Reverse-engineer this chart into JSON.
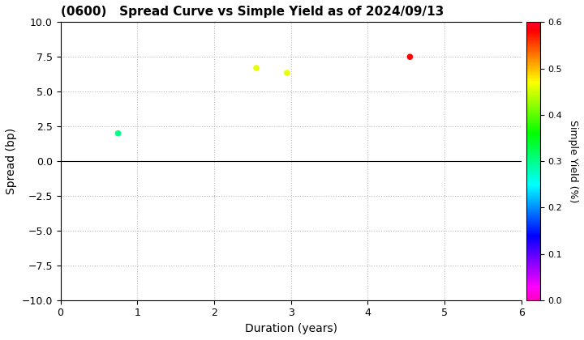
{
  "title": "(0600)   Spread Curve vs Simple Yield as of 2024/09/13",
  "xlabel": "Duration (years)",
  "ylabel": "Spread (bp)",
  "colorbar_label": "Simple Yield (%)",
  "xlim": [
    0,
    6
  ],
  "ylim": [
    -10.0,
    10.0
  ],
  "yticks": [
    -10.0,
    -7.5,
    -5.0,
    -2.5,
    0.0,
    2.5,
    5.0,
    7.5,
    10.0
  ],
  "xticks": [
    0,
    1,
    2,
    3,
    4,
    5,
    6
  ],
  "colorbar_range": [
    0.0,
    0.6
  ],
  "colorbar_ticks": [
    0.0,
    0.1,
    0.2,
    0.3,
    0.4,
    0.5,
    0.6
  ],
  "points": [
    {
      "duration": 0.75,
      "spread": 2.0,
      "simple_yield": 0.3
    },
    {
      "duration": 2.55,
      "spread": 6.7,
      "simple_yield": 0.46
    },
    {
      "duration": 2.95,
      "spread": 6.35,
      "simple_yield": 0.46
    },
    {
      "duration": 4.55,
      "spread": 7.5,
      "simple_yield": 0.58
    }
  ],
  "marker_size": 30,
  "background_color": "#ffffff",
  "grid_color": "#bbbbbb",
  "grid_style": ":"
}
